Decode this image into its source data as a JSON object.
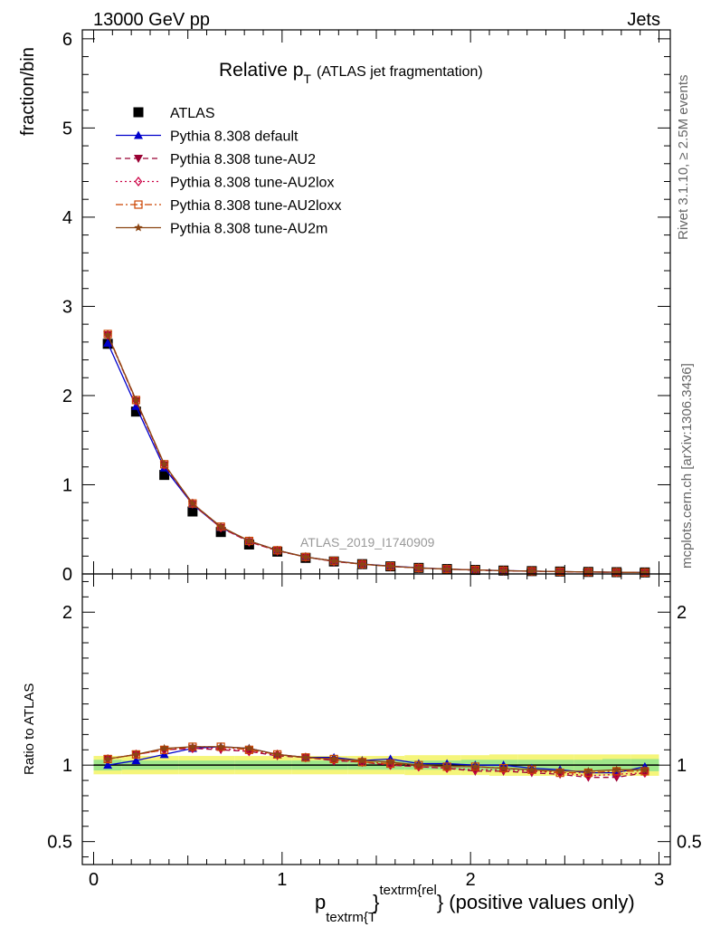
{
  "header": {
    "left": "13000 GeV pp",
    "right": "Jets"
  },
  "side": {
    "rivet": "Rivet 3.1.10, ≥ 2.5M events",
    "mcplots": "mcplots.cern.ch [arXiv:1306.3436]"
  },
  "watermark": "ATLAS_2019_I1740909",
  "chart_data": [
    {
      "type": "line",
      "title_main": "Relative p",
      "title_sub": "T",
      "title_rest": "(ATLAS jet fragmentation)",
      "ylabel": "fraction/bin",
      "xlim": [
        -0.06,
        3.06
      ],
      "ylim": [
        0,
        6.1
      ],
      "yticks": [
        0,
        1,
        2,
        3,
        4,
        5,
        6
      ],
      "ytick_labels": [
        "0",
        "1",
        "2",
        "3",
        "4",
        "5",
        "6"
      ],
      "x": [
        0.075,
        0.225,
        0.375,
        0.525,
        0.675,
        0.825,
        0.975,
        1.125,
        1.275,
        1.425,
        1.575,
        1.725,
        1.875,
        2.025,
        2.175,
        2.325,
        2.475,
        2.625,
        2.775,
        2.925
      ],
      "legend_position": "top-left",
      "series": [
        {
          "name": "ATLAS",
          "color": "#000000",
          "marker": "square",
          "line": "none",
          "values": [
            2.58,
            1.82,
            1.11,
            0.7,
            0.47,
            0.33,
            0.25,
            0.18,
            0.14,
            0.11,
            0.085,
            0.068,
            0.055,
            0.045,
            0.038,
            0.032,
            0.027,
            0.023,
            0.02,
            0.017
          ]
        },
        {
          "name": "Pythia 8.308 default",
          "color": "#0000cc",
          "marker": "triangle-up",
          "line": "solid",
          "values": [
            2.59,
            1.88,
            1.19,
            0.78,
            0.52,
            0.37,
            0.265,
            0.19,
            0.145,
            0.112,
            0.088,
            0.069,
            0.055,
            0.045,
            0.038,
            0.031,
            0.026,
            0.022,
            0.019,
            0.017
          ]
        },
        {
          "name": "Pythia 8.308 tune-AU2",
          "color": "#990033",
          "marker": "triangle-down",
          "line": "dashed",
          "values": [
            2.68,
            1.94,
            1.22,
            0.78,
            0.52,
            0.36,
            0.26,
            0.19,
            0.14,
            0.11,
            0.085,
            0.066,
            0.054,
            0.043,
            0.036,
            0.03,
            0.025,
            0.021,
            0.018,
            0.016
          ]
        },
        {
          "name": "Pythia 8.308 tune-AU2lox",
          "color": "#cc0044",
          "marker": "diamond-open",
          "line": "dotted",
          "values": [
            2.68,
            1.94,
            1.22,
            0.79,
            0.52,
            0.36,
            0.26,
            0.19,
            0.14,
            0.11,
            0.085,
            0.067,
            0.054,
            0.044,
            0.037,
            0.031,
            0.025,
            0.022,
            0.019,
            0.016
          ]
        },
        {
          "name": "Pythia 8.308 tune-AU2loxx",
          "color": "#cc4400",
          "marker": "square-open",
          "line": "dashdot",
          "values": [
            2.69,
            1.95,
            1.23,
            0.79,
            0.53,
            0.37,
            0.265,
            0.19,
            0.145,
            0.11,
            0.086,
            0.067,
            0.054,
            0.045,
            0.037,
            0.031,
            0.026,
            0.022,
            0.019,
            0.016
          ]
        },
        {
          "name": "Pythia 8.308 tune-AU2m",
          "color": "#8b4513",
          "marker": "star",
          "line": "solid",
          "values": [
            2.68,
            1.95,
            1.23,
            0.79,
            0.53,
            0.37,
            0.265,
            0.19,
            0.145,
            0.11,
            0.086,
            0.067,
            0.054,
            0.045,
            0.037,
            0.031,
            0.026,
            0.022,
            0.019,
            0.016
          ]
        }
      ]
    },
    {
      "type": "line",
      "ylabel": "Ratio to ATLAS",
      "xlabel_main": "p",
      "xlabel_sub": "textrm{T",
      "xlabel_sup": "textrm{rel",
      "xlabel_rest": "} (positive values only)",
      "xlabel_brace": "}",
      "xlim": [
        -0.06,
        3.06
      ],
      "ylim": [
        0.35,
        2.25
      ],
      "xticks": [
        0,
        1,
        2,
        3
      ],
      "xtick_labels": [
        "0",
        "1",
        "2",
        "3"
      ],
      "yticks": [
        0.5,
        1,
        2
      ],
      "ytick_labels": [
        "0.5",
        "1",
        "2"
      ],
      "x": [
        0.075,
        0.225,
        0.375,
        0.525,
        0.675,
        0.825,
        0.975,
        1.125,
        1.275,
        1.425,
        1.575,
        1.725,
        1.875,
        2.025,
        2.175,
        2.325,
        2.475,
        2.625,
        2.775,
        2.925
      ],
      "band_inner": [
        0.035,
        0.03,
        0.03,
        0.03,
        0.03,
        0.03,
        0.03,
        0.03,
        0.03,
        0.03,
        0.03,
        0.03,
        0.03,
        0.035,
        0.035,
        0.035,
        0.035,
        0.035,
        0.04,
        0.04
      ],
      "band_outer": [
        0.06,
        0.06,
        0.06,
        0.06,
        0.06,
        0.06,
        0.06,
        0.06,
        0.06,
        0.06,
        0.06,
        0.065,
        0.065,
        0.065,
        0.07,
        0.07,
        0.07,
        0.07,
        0.07,
        0.07
      ],
      "series": [
        {
          "name": "Pythia 8.308 default",
          "color": "#0000cc",
          "marker": "triangle-up",
          "line": "solid",
          "values": [
            1.0,
            1.03,
            1.07,
            1.11,
            1.12,
            1.11,
            1.07,
            1.05,
            1.05,
            1.03,
            1.04,
            1.01,
            1.01,
            1.0,
            1.0,
            0.98,
            0.97,
            0.95,
            0.95,
            0.99
          ]
        },
        {
          "name": "Pythia 8.308 tune-AU2",
          "color": "#990033",
          "marker": "triangle-down",
          "line": "dashed",
          "values": [
            1.04,
            1.07,
            1.1,
            1.11,
            1.1,
            1.09,
            1.06,
            1.05,
            1.03,
            1.02,
            1.0,
            0.99,
            0.98,
            0.96,
            0.96,
            0.95,
            0.94,
            0.92,
            0.92,
            0.95
          ]
        },
        {
          "name": "Pythia 8.308 tune-AU2lox",
          "color": "#cc0044",
          "marker": "diamond-open",
          "line": "dotted",
          "values": [
            1.04,
            1.07,
            1.1,
            1.11,
            1.11,
            1.09,
            1.07,
            1.05,
            1.03,
            1.02,
            1.0,
            0.99,
            0.98,
            0.97,
            0.97,
            0.96,
            0.95,
            0.93,
            0.94,
            0.95
          ]
        },
        {
          "name": "Pythia 8.308 tune-AU2loxx",
          "color": "#cc4400",
          "marker": "square-open",
          "line": "dashdot",
          "values": [
            1.04,
            1.07,
            1.1,
            1.12,
            1.12,
            1.1,
            1.07,
            1.05,
            1.04,
            1.02,
            1.01,
            1.0,
            0.99,
            0.99,
            0.98,
            0.97,
            0.95,
            0.95,
            0.96,
            0.96
          ]
        },
        {
          "name": "Pythia 8.308 tune-AU2m",
          "color": "#8b4513",
          "marker": "star",
          "line": "solid",
          "values": [
            1.04,
            1.07,
            1.11,
            1.12,
            1.12,
            1.11,
            1.07,
            1.05,
            1.04,
            1.03,
            1.02,
            1.0,
            0.99,
            0.99,
            0.98,
            0.97,
            0.96,
            0.96,
            0.97,
            0.97
          ]
        }
      ]
    }
  ]
}
